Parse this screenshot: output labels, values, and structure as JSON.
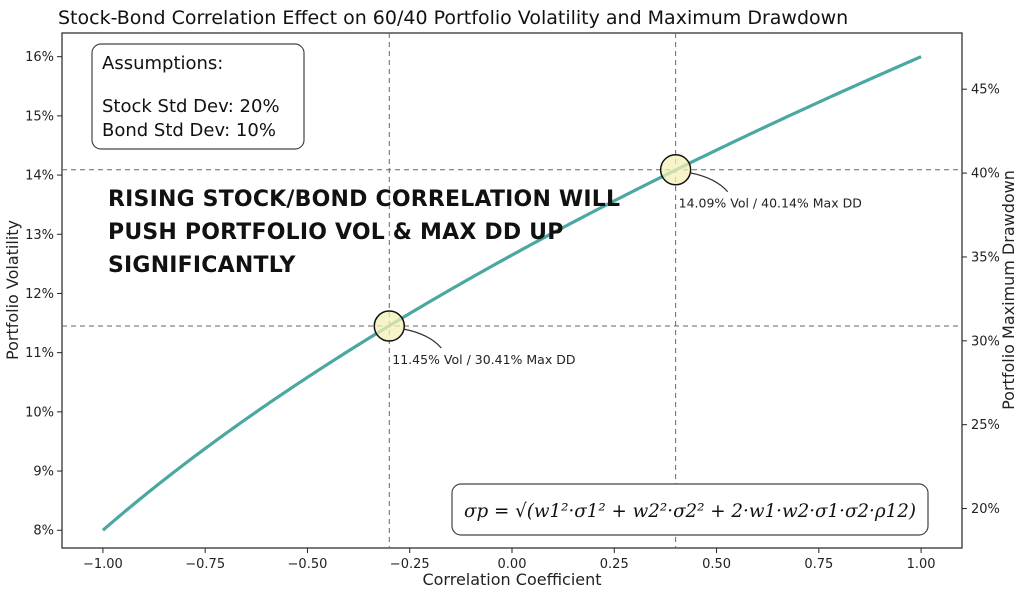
{
  "chart_data": {
    "type": "line",
    "title": "Stock-Bond Correlation Effect on 60/40 Portfolio Volatility and Maximum Drawdown",
    "xlabel": "Correlation Coefficient",
    "ylabel": "Portfolio Volatility",
    "y2label": "Portfolio Maximum Drawdown",
    "xlim": [
      -1.1,
      1.1
    ],
    "ylim": [
      7.7,
      16.4
    ],
    "y2lim": [
      17.65,
      48.35
    ],
    "x_ticks": [
      "−1.00",
      "−0.75",
      "−0.50",
      "−0.25",
      "0.00",
      "0.25",
      "0.50",
      "0.75",
      "1.00"
    ],
    "x_tick_values": [
      -1.0,
      -0.75,
      -0.5,
      -0.25,
      0.0,
      0.25,
      0.5,
      0.75,
      1.0
    ],
    "y_ticks": [
      "8%",
      "9%",
      "10%",
      "11%",
      "12%",
      "13%",
      "14%",
      "15%",
      "16%"
    ],
    "y_tick_values": [
      8,
      9,
      10,
      11,
      12,
      13,
      14,
      15,
      16
    ],
    "y2_ticks": [
      "20%",
      "25%",
      "30%",
      "35%",
      "40%",
      "45%"
    ],
    "y2_tick_values": [
      20,
      25,
      30,
      35,
      40,
      45
    ],
    "series_color": "#4aa8a0",
    "marker_fill": "#f3f0b5",
    "highlights": [
      {
        "x": -0.3,
        "y": 11.45,
        "label": "11.45% Vol / 30.41% Max DD"
      },
      {
        "x": 0.4,
        "y": 14.09,
        "label": "14.09% Vol / 40.14% Max DD"
      }
    ],
    "headline": [
      "RISING STOCK/BOND CORRELATION WILL",
      "PUSH PORTFOLIO VOL & MAX DD UP",
      "SIGNIFICANTLY"
    ],
    "assumptions": {
      "title": "Assumptions:",
      "stock": "Stock Std Dev: 20%",
      "bond": "Bond Std Dev: 10%"
    },
    "formula": "σp = √(w1²·σ1² + w2²·σ2² + 2·w1·w2·σ1·σ2·ρ12)",
    "weights": {
      "stock": 0.6,
      "bond": 0.4
    },
    "std_devs": {
      "stock": 20,
      "bond": 10
    }
  }
}
